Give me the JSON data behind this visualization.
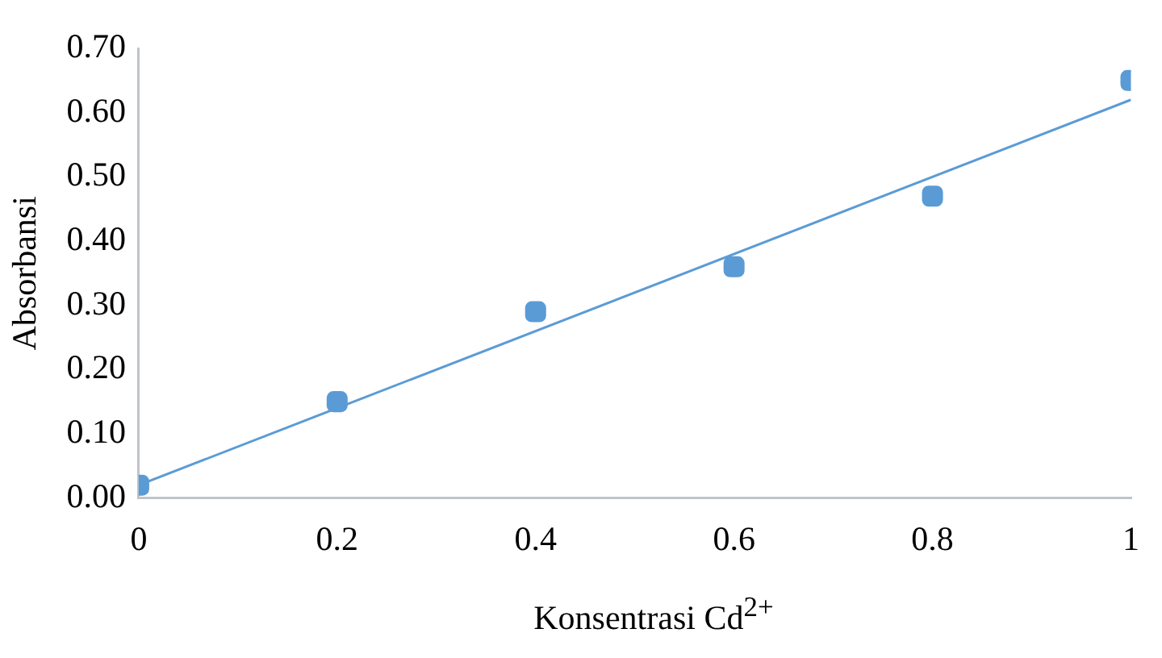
{
  "chart_data": {
    "type": "scatter",
    "xlabel": "Konsentrasi Cd$^{2+}$",
    "ylabel": "Absorbansi",
    "x": [
      0,
      0.2,
      0.4,
      0.6,
      0.8,
      1
    ],
    "series": [
      {
        "color": "#5b9bd5",
        "marker": "square",
        "values": [
          0.02,
          0.15,
          0.29,
          0.36,
          0.47,
          0.65
        ]
      },
      {
        "type": "line",
        "color": "#5b9bd5",
        "marker": "none",
        "x": [
          0,
          1
        ],
        "values": [
          0.02,
          0.62
        ]
      }
    ],
    "xlim": [
      0,
      1
    ],
    "xticks": [
      0,
      0.2,
      0.4,
      0.6,
      0.8,
      1
    ],
    "ylim": [
      0,
      0.7
    ],
    "yticks": [
      {
        "value": 0,
        "label": "0.00"
      },
      {
        "value": 0.1,
        "label": "0.10"
      },
      {
        "value": 0.2,
        "label": "0.20"
      },
      {
        "value": 0.3,
        "label": "0.30"
      },
      {
        "value": 0.4,
        "label": "0.40"
      },
      {
        "value": 0.5,
        "label": "0.50"
      },
      {
        "value": 0.6,
        "label": "0.60"
      },
      {
        "value": 0.7,
        "label": "0.70"
      }
    ],
    "grid": false,
    "legend": false
  }
}
